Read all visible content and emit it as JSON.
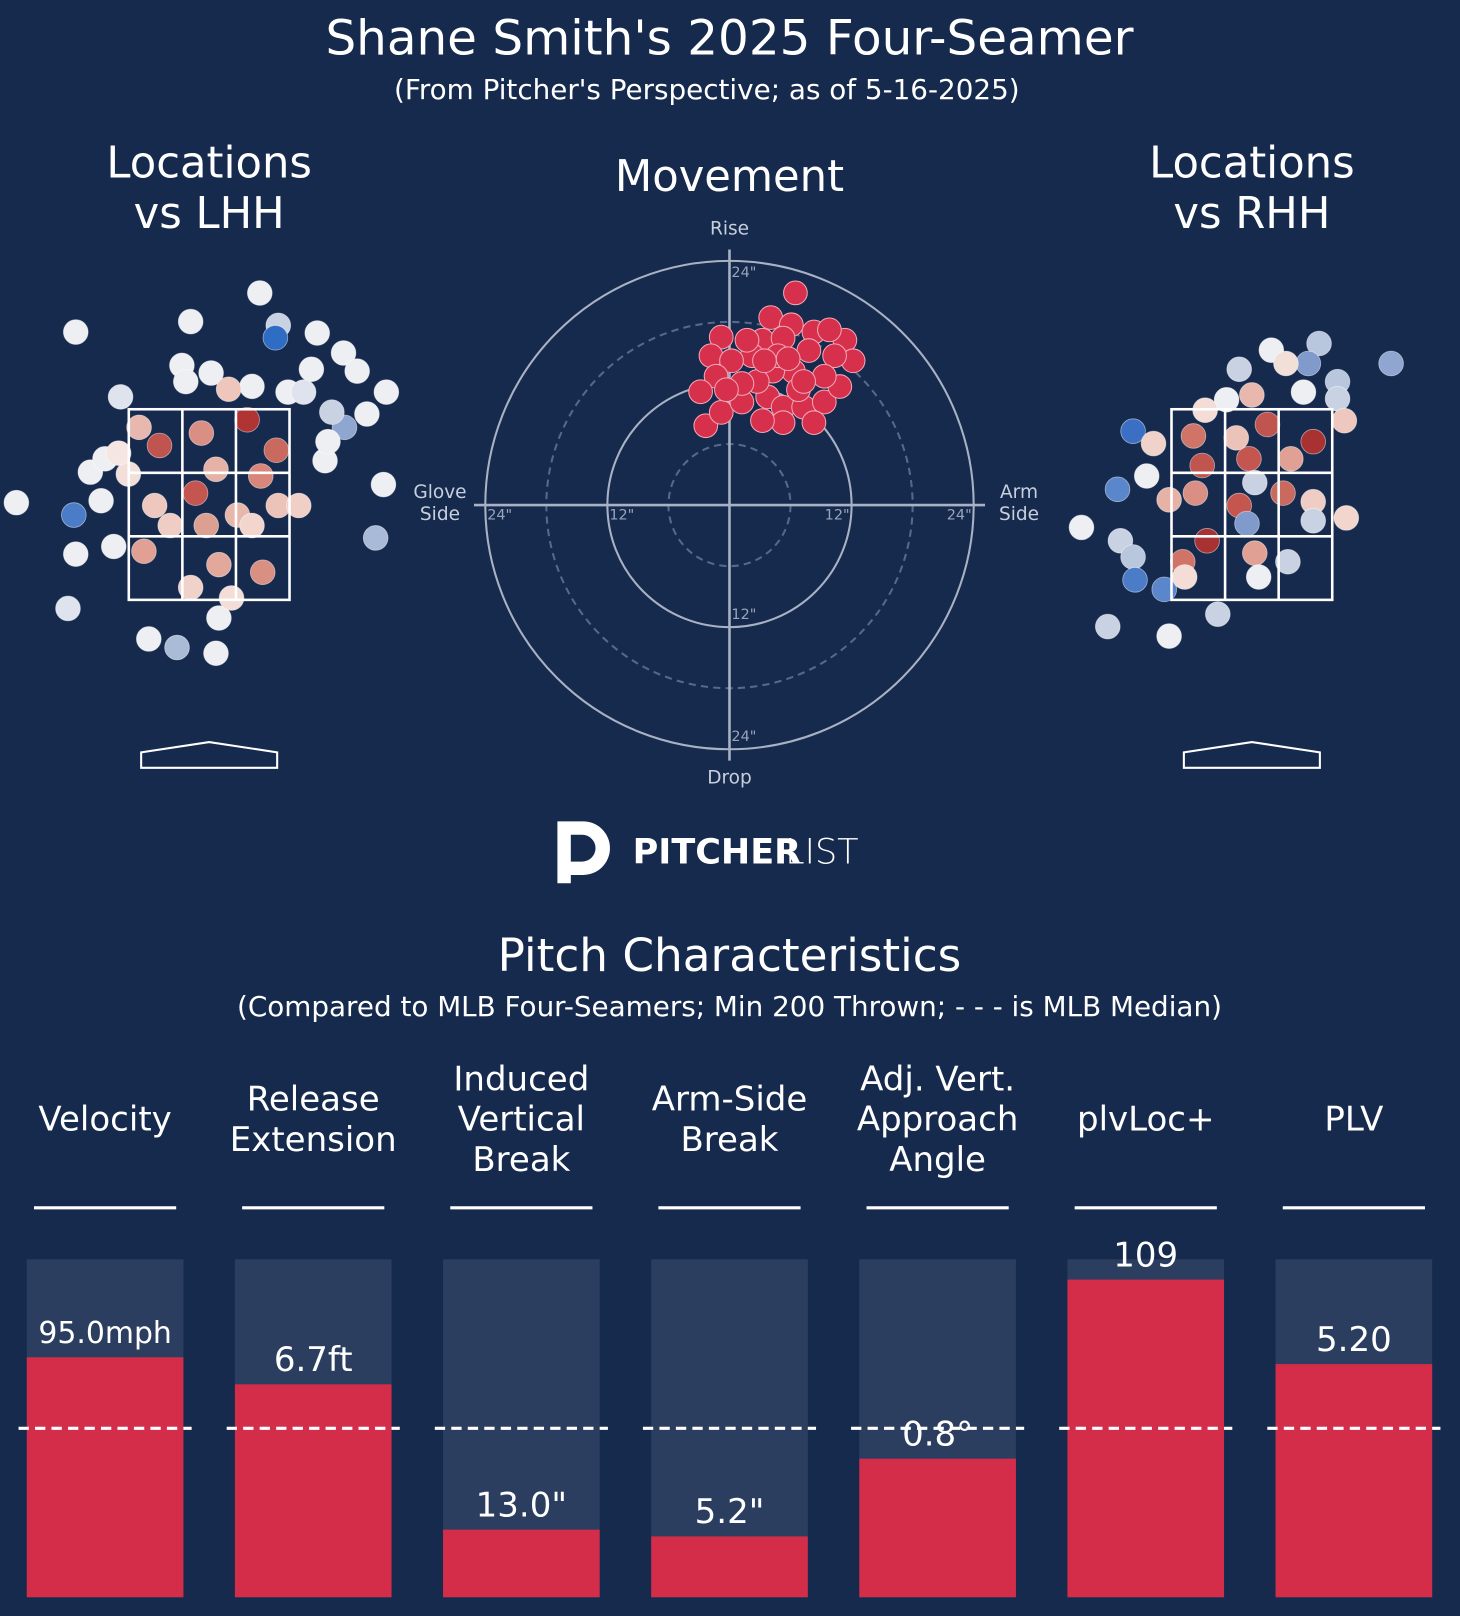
{
  "title": "Shane Smith's 2025 Four-Seamer",
  "subtitle": "(From Pitcher's Perspective; as of 5-16-2025)",
  "logo": [
    "PITCHER",
    "LIST"
  ],
  "chart_data": [
    {
      "type": "location",
      "title": [
        "Locations",
        "vs LHH"
      ],
      "xlim": [
        -2,
        2
      ],
      "ylim": [
        0,
        5
      ],
      "x": [
        0.52,
        -0.19,
        -1.37,
        0.71,
        1.11,
        0.68,
        1.38,
        -0.28,
        1.52,
        1.05,
        1.82,
        -0.91,
        1.62,
        1.39,
        1.26,
        1.79,
        1.71,
        -1.39,
        -1.37,
        -1.45,
        -0.62,
        -0.33,
        0.07,
        0.1,
        -0.98,
        -1.11,
        -1.22,
        -1.07,
        1.19,
        1.22,
        -1.98,
        -0.24,
        0.02,
        0.44,
        0.81,
        0.97,
        -0.51,
        -0.72,
        -0.08,
        0.39,
        0.69,
        0.07,
        -0.14,
        0.53,
        -0.56,
        0.29,
        0.71,
        -0.67,
        -0.19,
        0.1,
        0.55,
        0.23,
        -0.4,
        -0.03,
        0.44,
        0.92,
        -0.83,
        -0.93,
        0.2
      ],
      "values": [
        4.72,
        4.42,
        4.31,
        4.38,
        4.3,
        4.25,
        4.09,
        3.96,
        3.9,
        3.92,
        3.68,
        3.63,
        3.45,
        3.31,
        3.47,
        2.71,
        2.15,
        2.39,
        1.98,
        1.41,
        1.09,
        1.0,
        0.94,
        1.31,
        2.06,
        2.54,
        2.84,
        2.98,
        2.96,
        3.16,
        2.52,
        3.79,
        3.88,
        3.74,
        3.68,
        3.68,
        3.12,
        3.31,
        3.25,
        3.39,
        3.07,
        2.87,
        2.62,
        2.8,
        2.49,
        2.39,
        2.49,
        2.01,
        1.63,
        1.87,
        1.79,
        1.52,
        2.28,
        2.28,
        2.28,
        2.49,
        2.82,
        3.04,
        3.71
      ],
      "colors": [
        "#eeeff3",
        "#eeeff3",
        "#eeeff3",
        "#c9d2e3",
        "#eeeff3",
        "#2f6cc4",
        "#eeeff3",
        "#eeeff3",
        "#eeeff3",
        "#eeeff3",
        "#eeeff3",
        "#dfe3ee",
        "#eeeff3",
        "#8ea6d0",
        "#c9d2e3",
        "#eeeff3",
        "#a9bad8",
        "#4a7cc8",
        "#eeeff3",
        "#dfe3ee",
        "#eeeff3",
        "#aabbd8",
        "#eeeff3",
        "#eeeff3",
        "#eeeff3",
        "#eeeff3",
        "#eeeff3",
        "#eeeff3",
        "#eeeff3",
        "#eeeff3",
        "#eeeff3",
        "#eeeff3",
        "#eeeff3",
        "#eeeff3",
        "#eeeff3",
        "#dfe3ee",
        "#c0544f",
        "#e8b8ae",
        "#d98f83",
        "#b03434",
        "#c96a5e",
        "#e6b2a6",
        "#c5564f",
        "#d8857a",
        "#eec8be",
        "#e7b7ac",
        "#ebc3b9",
        "#e0a194",
        "#f0d2ca",
        "#e2a89b",
        "#d98f82",
        "#f3ddd6",
        "#f0cdc4",
        "#dca093",
        "#f2d6ce",
        "#f0cfc6",
        "#f3dfd9",
        "#f5e6e1",
        "#eec6bc"
      ]
    },
    {
      "type": "location",
      "title": [
        "Locations",
        "vs RHH"
      ],
      "xlim": [
        -2,
        2
      ],
      "ylim": [
        0,
        5
      ],
      "x": [
        1.43,
        0.69,
        0.2,
        -0.13,
        0.58,
        0.88,
        0.35,
        0.53,
        0.88,
        0.0,
        -0.26,
        -0.48,
        0.95,
        -1.22,
        -1.01,
        -0.6,
        0.16,
        0.63,
        -0.03,
        0.4,
        -0.51,
        -1.08,
        -1.38,
        0.03,
        0.32,
        0.63,
        0.97,
        0.63,
        -0.13,
        -0.58,
        -0.85,
        -1.75,
        -1.35,
        -1.22,
        -1.2,
        -0.9,
        -0.46,
        -0.05,
        0.03,
        -0.71,
        -0.69,
        0.07,
        0.37,
        -0.35,
        -1.48,
        -0.85,
        -0.16
      ],
      "values": [
        3.98,
        4.19,
        4.12,
        3.92,
        3.98,
        3.79,
        3.98,
        3.68,
        3.61,
        3.65,
        3.6,
        3.49,
        3.38,
        3.27,
        3.14,
        3.22,
        3.34,
        3.16,
        2.98,
        2.98,
        2.91,
        2.8,
        2.66,
        2.73,
        2.62,
        2.53,
        2.36,
        2.33,
        2.49,
        2.62,
        2.55,
        2.26,
        2.12,
        1.95,
        1.71,
        1.61,
        2.12,
        2.3,
        1.99,
        1.9,
        1.74,
        1.74,
        1.9,
        1.35,
        1.22,
        1.12,
        3.2
      ],
      "colors": [
        "#8ea6d0",
        "#b8c6de",
        "#eeeff3",
        "#c9d2e3",
        "#7f9acb",
        "#b8c6de",
        "#f2dfd8",
        "#eeeff3",
        "#c9d2e3",
        "#e8b8ae",
        "#eeeff3",
        "#f3ddd6",
        "#eec8be",
        "#3a6fc4",
        "#f0d2ca",
        "#d07468",
        "#c0544f",
        "#a83232",
        "#c5564f",
        "#e0a194",
        "#c0544f",
        "#eeeff3",
        "#5a86cc",
        "#c9d2e3",
        "#c96a5e",
        "#f0cdc4",
        "#f2d6ce",
        "#c9d2e3",
        "#c5564f",
        "#d98f83",
        "#e6b2a6",
        "#eeeff3",
        "#c9d2e3",
        "#b8c6de",
        "#4a7cc8",
        "#5a86cc",
        "#a83232",
        "#7f9acb",
        "#e0a194",
        "#d07468",
        "#f3ddd6",
        "#eeeff3",
        "#c9d2e3",
        "#c9d2e3",
        "#c9d2e3",
        "#eeeff3",
        "#ebc3b9"
      ]
    },
    {
      "type": "movement",
      "title": "Movement",
      "color": "#d6304c",
      "xlim": [
        -24,
        24
      ],
      "ylim": [
        -24,
        24
      ],
      "x": [
        6.48,
        4.05,
        6.08,
        -0.81,
        -1.82,
        3.24,
        5.27,
        8.3,
        11.34,
        12.15,
        10.33,
        7.8,
        2.23,
        0.2,
        -1.32,
        -2.84,
        -2.33,
        -0.81,
        1.22,
        3.75,
        5.27,
        7.29,
        9.32,
        10.84,
        9.32,
        6.28,
        4.25,
        2.73,
        1.22,
        -0.3,
        5.27,
        3.24,
        8.3,
        6.78,
        4.76,
        9.82,
        3.44,
        5.77,
        1.72,
        7.29
      ],
      "values": [
        20.86,
        18.43,
        17.72,
        16.51,
        14.68,
        16.2,
        16.41,
        17.01,
        16.2,
        14.18,
        14.68,
        15.19,
        14.68,
        14.18,
        12.66,
        11.14,
        7.8,
        9.11,
        10.13,
        10.63,
        9.62,
        9.62,
        10.13,
        11.65,
        12.66,
        13.16,
        13.16,
        12.15,
        11.95,
        11.34,
        8.1,
        8.3,
        8.1,
        11.34,
        14.68,
        17.22,
        14.18,
        14.38,
        16.2,
        12.15
      ],
      "xticks": [
        {
          "value": -24,
          "label": "24\""
        },
        {
          "value": -12,
          "label": "12\""
        },
        {
          "value": 12,
          "label": "12\""
        },
        {
          "value": 24,
          "label": "24\""
        }
      ],
      "yticks": [
        {
          "value": 24,
          "label": "24\""
        },
        {
          "value": -12,
          "label": "12\""
        },
        {
          "value": -24,
          "label": "24\""
        }
      ],
      "rgrid": [
        {
          "value": 6,
          "style": "dashed"
        },
        {
          "value": 12,
          "style": "solid"
        },
        {
          "value": 18,
          "style": "dashed"
        },
        {
          "value": 24,
          "style": "solid"
        }
      ],
      "axis_labels": {
        "top": "Rise",
        "bottom": "Drop",
        "left": [
          "Glove",
          "Side"
        ],
        "right": [
          "Arm",
          "Side"
        ]
      }
    },
    {
      "type": "bar",
      "title": "Pitch Characteristics",
      "subtitle": "(Compared to MLB Four-Seamers; Min 200 Thrown; - - - is MLB Median)",
      "categories": [
        [
          "Velocity"
        ],
        [
          "Release",
          "Extension"
        ],
        [
          "Induced",
          "Vertical",
          "Break"
        ],
        [
          "Arm-Side",
          "Break"
        ],
        [
          "Adj. Vert.",
          "Approach",
          "Angle"
        ],
        [
          "plvLoc+"
        ],
        [
          "PLV"
        ]
      ],
      "values": [
        95.0,
        6.7,
        13.0,
        5.2,
        0.8,
        109,
        5.2
      ],
      "value_labels": [
        "95.0mph",
        "6.7ft",
        "13.0\"",
        "5.2\"",
        "0.8°",
        "109",
        "5.20"
      ],
      "percentiles": [
        71,
        63,
        20,
        18,
        41,
        94,
        69
      ],
      "ylim": [
        0,
        100
      ],
      "median": 50,
      "color": "#d42d4a",
      "background_color": "#2c3e60"
    }
  ]
}
